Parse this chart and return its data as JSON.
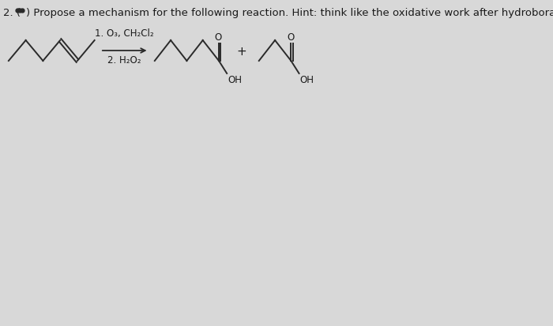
{
  "background_color": "#d8d8d8",
  "font_size_title": 9.5,
  "font_size_reagent": 8.5,
  "font_size_atom": 8.5,
  "text_color": "#1a1a1a",
  "line_color": "#2a2a2a",
  "line_width": 1.4,
  "reactant_label": "1. O₃, CH₂Cl₂",
  "reagent2_label": "2. H₂O₂",
  "title_prefix": "2. (",
  "title_suffix": ") Propose a mechanism for the following reaction. Hint: think like the oxidative work after hydroboration.",
  "plus": "+"
}
